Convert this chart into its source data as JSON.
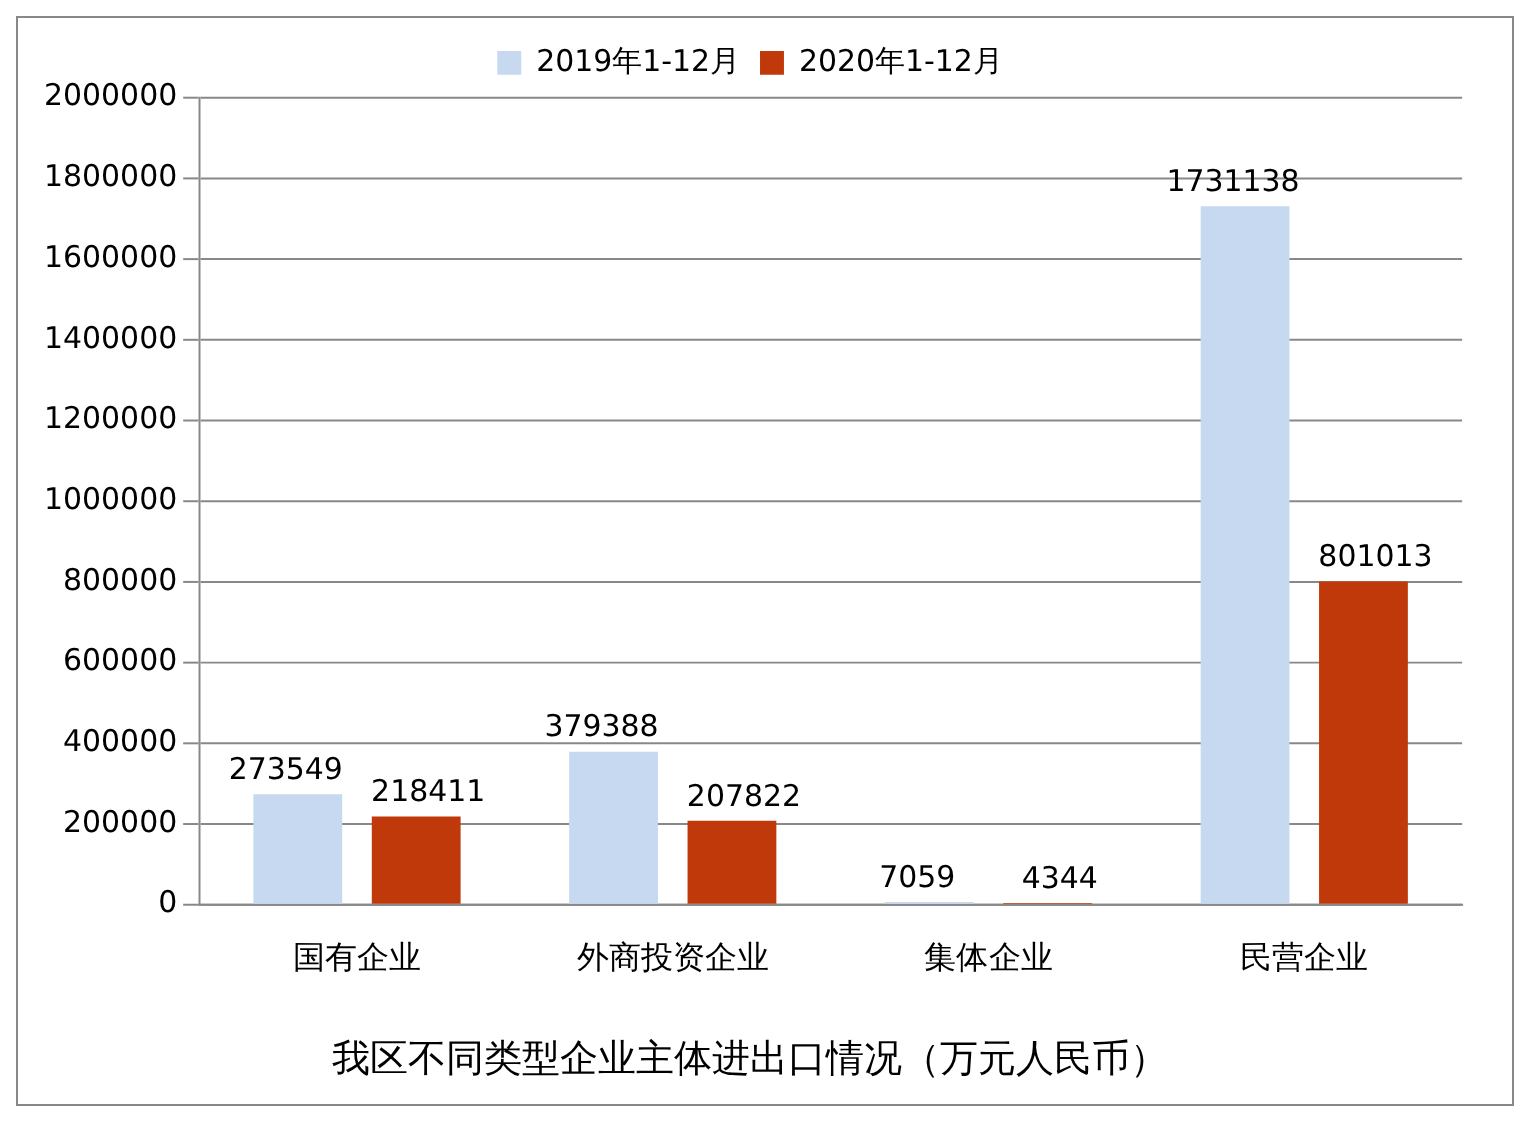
{
  "chart_data": {
    "type": "bar",
    "title": "我区不同类型企业主体进出口情况（万元人民币）",
    "categories": [
      "国有企业",
      "外商投资企业",
      "集体企业",
      "民营企业"
    ],
    "series": [
      {
        "name": "2019年1-12月",
        "color": "#c6d9f1",
        "values": [
          273549,
          379388,
          7059,
          1731138
        ]
      },
      {
        "name": "2020年1-12月",
        "color": "#c0390b",
        "values": [
          218411,
          207822,
          4344,
          801013
        ]
      }
    ],
    "ylim": [
      0,
      2000000
    ],
    "yticks": [
      0,
      200000,
      400000,
      600000,
      800000,
      1000000,
      1200000,
      1400000,
      1600000,
      1800000,
      2000000
    ],
    "grid": "y",
    "legend": "top",
    "data_labels": true
  }
}
